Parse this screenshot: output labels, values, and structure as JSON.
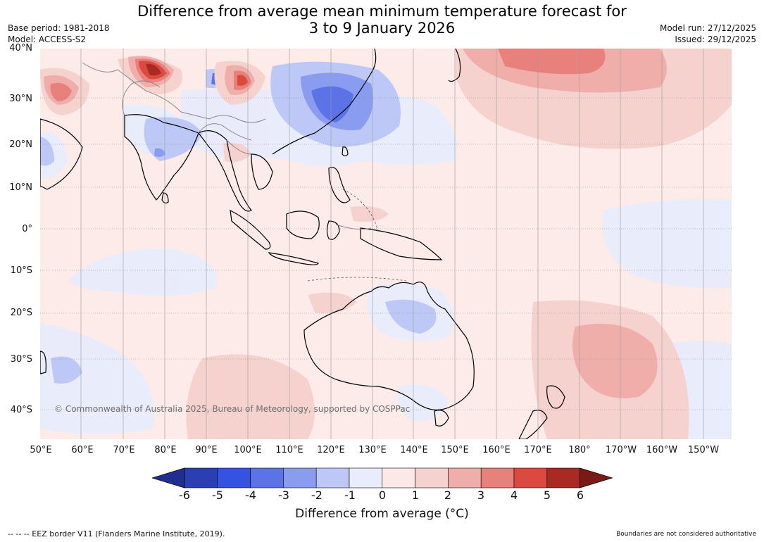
{
  "title": {
    "line1": "Difference from average mean minimum temperature forecast for",
    "line2": "3 to 9 January 2026"
  },
  "meta_left": {
    "base_period": "Base period: 1981-2018",
    "model": "Model: ACCESS-S2"
  },
  "meta_right": {
    "model_run": "Model run: 27/12/2025",
    "issued": "Issued: 29/12/2025"
  },
  "map": {
    "latitude_labels": [
      "40°N",
      "30°N",
      "20°N",
      "10°N",
      "0°",
      "10°S",
      "20°S",
      "30°S",
      "40°S"
    ],
    "longitude_labels": [
      "50°E",
      "60°E",
      "70°E",
      "80°E",
      "90°E",
      "100°E",
      "110°E",
      "120°E",
      "130°E",
      "140°E",
      "150°E",
      "160°E",
      "170°E",
      "180°",
      "170°W",
      "160°W",
      "150°W"
    ],
    "copyright": "© Commonwealth of Australia 2025, Bureau of Meteorology, supported by COSPPac"
  },
  "colorbar": {
    "ticks": [
      "-6",
      "-5",
      "-4",
      "-3",
      "-2",
      "-1",
      "0",
      "1",
      "2",
      "3",
      "4",
      "5",
      "6"
    ],
    "title": "Difference from average (°C)",
    "colors": [
      "#1f2e8f",
      "#2a3fb4",
      "#3553e0",
      "#5c73e8",
      "#8a9cf0",
      "#bec8f6",
      "#e8ecfc",
      "#fce9e7",
      "#f6d2cf",
      "#f0aeaa",
      "#e8817c",
      "#da4a3e",
      "#a82a22",
      "#7a1a14"
    ]
  },
  "footer": {
    "eez_note": "-- -- -- EEZ border V11 (Flanders Marine Institute, 2019).",
    "boundaries_note": "Boundaries are not considered authoritative"
  }
}
